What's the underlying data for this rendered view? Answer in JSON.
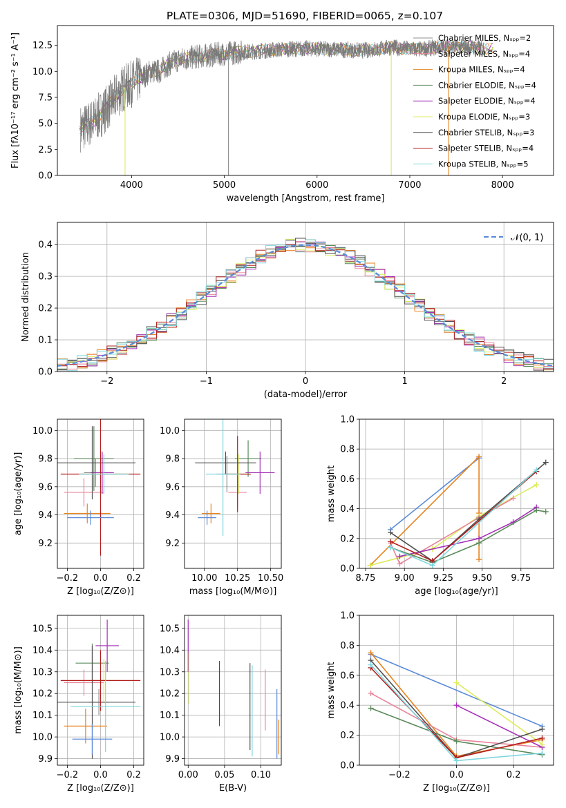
{
  "figure_title": "PLATE=0306, MJD=51690, FIBERID=0065, z=0.107",
  "model_colors": [
    "#8c8c8c",
    "#e8849a",
    "#e8821e",
    "#5a8a5a",
    "#a530b8",
    "#dcec5a",
    "#505050",
    "#b21e1e",
    "#7fd6de"
  ],
  "chart_data": [
    {
      "type": "line",
      "id": "spectrum",
      "xlabel": "wavelength [Angstrom, rest frame]",
      "ylabel": "Flux [fλ10⁻¹⁷ erg cm⁻² s⁻¹ A⁻¹]",
      "xlim": [
        3200,
        8550
      ],
      "ylim": [
        0,
        14.4
      ],
      "xticks": [
        "4000",
        "5000",
        "6000",
        "7000",
        "8000"
      ],
      "yticks": [
        "0.0",
        "2.5",
        "5.0",
        "7.5",
        "10.0",
        "12.5"
      ],
      "legend": [
        "Chabrier MILES, Nₛₚₚ=2",
        "Salpeter MILES, Nₛₚₚ=4",
        "Kroupa MILES, Nₛₚₚ=4",
        "Chabrier ELODIE, Nₛₚₚ=4",
        "Salpeter ELODIE, Nₛₚₚ=4",
        "Kroupa ELODIE, Nₛₚₚ=3",
        "Chabrier STELIB, Nₛₚₚ=3",
        "Salpeter STELIB, Nₛₚₚ=4",
        "Kroupa STELIB, Nₛₚₚ=5"
      ],
      "legend_position": "right",
      "continuum": {
        "x": [
          3420,
          3500,
          3600,
          3700,
          3800,
          3900,
          4000,
          4100,
          4200,
          4300,
          4400,
          4500,
          4700,
          4900,
          5100,
          5300,
          5600,
          5900,
          6200,
          6500,
          6800,
          7100,
          7400,
          7700,
          7900
        ],
        "y": [
          4.4,
          4.7,
          5.3,
          6.2,
          7.2,
          8.3,
          8.8,
          9.3,
          10.0,
          10.0,
          10.7,
          11.1,
          11.4,
          11.6,
          11.8,
          11.9,
          12.1,
          12.2,
          12.1,
          12.0,
          12.3,
          12.1,
          12.4,
          12.3,
          12.1
        ]
      },
      "noise_amplitude": 1.0,
      "drop_lines": [
        3930,
        5045,
        6800,
        7420
      ]
    },
    {
      "type": "bar",
      "id": "residuals",
      "xlabel": "(data-model)/error",
      "ylabel": "Normed distribution",
      "xlim": [
        -2.5,
        2.5
      ],
      "ylim": [
        0,
        0.47
      ],
      "grid": true,
      "xticks": [
        "−2",
        "−1",
        "0",
        "1",
        "2"
      ],
      "yticks": [
        "0.0",
        "0.1",
        "0.2",
        "0.3",
        "0.4"
      ],
      "bin_width": 0.1,
      "legend": [
        "𝒩(0, 1)"
      ],
      "legend_position": "upper right",
      "gaussian": {
        "mean": 0,
        "sigma": 1
      }
    },
    {
      "type": "scatter",
      "id": "age_vs_Z",
      "xlabel": "Z [log₁₀(Z/Z⊙)]",
      "ylabel": "age  [log₁₀(age/yr)]",
      "xlim": [
        -0.26,
        0.26
      ],
      "ylim": [
        9.02,
        10.08
      ],
      "grid": true,
      "xticks": [
        {
          "v": -0.2,
          "t": "−0.2"
        },
        {
          "v": 0,
          "t": "0.0"
        },
        {
          "v": 0.2,
          "t": "0.2"
        }
      ],
      "yticks": [
        {
          "v": 9.2,
          "t": "9.2"
        },
        {
          "v": 9.4,
          "t": "9.4"
        },
        {
          "v": 9.6,
          "t": "9.6"
        },
        {
          "v": 9.8,
          "t": "9.8"
        },
        {
          "v": 10.0,
          "t": "10.0"
        }
      ],
      "points": [
        {
          "x": -0.03,
          "y": 9.7,
          "xerr": 0.07,
          "yerr": 0.1,
          "c": 0
        },
        {
          "x": -0.1,
          "y": 9.56,
          "xerr": 0.12,
          "yerr": 0.1,
          "c": 1
        },
        {
          "x": -0.08,
          "y": 9.41,
          "xerr": 0.14,
          "yerr": 0.07,
          "c": 2
        },
        {
          "x": -0.04,
          "y": 9.8,
          "xerr": 0.12,
          "yerr": 0.23,
          "c": 3
        },
        {
          "x": 0.01,
          "y": 9.7,
          "xerr": 0.07,
          "yerr": 0.15,
          "c": 4
        },
        {
          "x": 0.02,
          "y": 9.69,
          "xerr": 0.14,
          "yerr": 0.14,
          "c": 5
        },
        {
          "x": -0.05,
          "y": 9.77,
          "xerr": 0.26,
          "yerr": 0.26,
          "c": 6
        },
        {
          "x": 0.0,
          "y": 9.69,
          "xerr": 0.24,
          "yerr": 0.58,
          "c": 7
        },
        {
          "x": 0.02,
          "y": 9.69,
          "xerr": 0.15,
          "yerr": 0.14,
          "c": 8
        },
        {
          "x": -0.06,
          "y": 9.38,
          "xerr": 0.14,
          "yerr": 0.05,
          "c": 9
        }
      ]
    },
    {
      "type": "scatter",
      "id": "age_vs_mass",
      "xlabel": "mass [log₁₀(M/M⊙)]",
      "ylabel": "",
      "xlim": [
        9.85,
        10.58
      ],
      "ylim": [
        9.02,
        10.08
      ],
      "grid": true,
      "xticks": [
        {
          "v": 10.0,
          "t": "10.00"
        },
        {
          "v": 10.25,
          "t": "10.25"
        },
        {
          "v": 10.5,
          "t": "10.50"
        }
      ],
      "yticks": [
        {
          "v": 9.2,
          "t": "9.2"
        },
        {
          "v": 9.4,
          "t": "9.4"
        },
        {
          "v": 9.6,
          "t": "9.6"
        },
        {
          "v": 9.8,
          "t": "9.8"
        },
        {
          "v": 10.0,
          "t": "10.0"
        }
      ],
      "points": [
        {
          "x": 10.17,
          "y": 9.69,
          "xerr": 0.08,
          "yerr": 0.13,
          "c": 0
        },
        {
          "x": 10.25,
          "y": 9.56,
          "xerr": 0.07,
          "yerr": 0.1,
          "c": 1
        },
        {
          "x": 10.05,
          "y": 9.41,
          "xerr": 0.07,
          "yerr": 0.07,
          "c": 2
        },
        {
          "x": 10.33,
          "y": 9.8,
          "xerr": 0.1,
          "yerr": 0.13,
          "c": 3
        },
        {
          "x": 10.42,
          "y": 9.7,
          "xerr": 0.11,
          "yerr": 0.15,
          "c": 4
        },
        {
          "x": 10.26,
          "y": 9.69,
          "xerr": 0.07,
          "yerr": 0.14,
          "c": 5
        },
        {
          "x": 10.16,
          "y": 9.77,
          "xerr": 0.23,
          "yerr": 0.08,
          "c": 6
        },
        {
          "x": 10.25,
          "y": 9.69,
          "xerr": 0.1,
          "yerr": 0.27,
          "c": 7
        },
        {
          "x": 10.14,
          "y": 9.69,
          "xerr": 0.13,
          "yerr": 0.44,
          "c": 8
        },
        {
          "x": 10.02,
          "y": 9.38,
          "xerr": 0.07,
          "yerr": 0.05,
          "c": 9
        }
      ]
    },
    {
      "type": "line",
      "id": "mass_weight_vs_age",
      "xlabel": "age  [log₁₀(age/yr)]",
      "ylabel": "mass weight",
      "xlim": [
        8.71,
        9.96
      ],
      "ylim": [
        0,
        1.0
      ],
      "grid": true,
      "xticks": [
        {
          "v": 8.75,
          "t": "8.75"
        },
        {
          "v": 9.0,
          "t": "9.00"
        },
        {
          "v": 9.25,
          "t": "9.25"
        },
        {
          "v": 9.5,
          "t": "9.50"
        },
        {
          "v": 9.75,
          "t": "9.75"
        }
      ],
      "yticks": [
        {
          "v": 0,
          "t": "0.0"
        },
        {
          "v": 0.2,
          "t": "0.2"
        },
        {
          "v": 0.4,
          "t": "0.4"
        },
        {
          "v": 0.6,
          "t": "0.6"
        },
        {
          "v": 0.8,
          "t": "0.8"
        },
        {
          "v": 1.0,
          "t": "1.0"
        }
      ],
      "series": [
        {
          "c": 9,
          "x": [
            8.91,
            9.48
          ],
          "y": [
            0.26,
            0.74
          ]
        },
        {
          "c": 2,
          "x": [
            8.78,
            9.48,
            9.48,
            9.48
          ],
          "y": [
            0.02,
            0.75,
            0.37,
            0.06
          ]
        },
        {
          "c": 5,
          "x": [
            8.78,
            9.18,
            9.48,
            9.85
          ],
          "y": [
            0.02,
            0.13,
            0.35,
            0.56
          ]
        },
        {
          "c": 1,
          "x": [
            8.91,
            8.97,
            9.48,
            9.7
          ],
          "y": [
            0.17,
            0.03,
            0.34,
            0.47
          ]
        },
        {
          "c": 4,
          "x": [
            8.97,
            9.48,
            9.7,
            9.85
          ],
          "y": [
            0.08,
            0.2,
            0.31,
            0.41
          ]
        },
        {
          "c": 3,
          "x": [
            8.91,
            9.18,
            9.48,
            9.85,
            9.91
          ],
          "y": [
            0.14,
            0.04,
            0.17,
            0.39,
            0.38
          ]
        },
        {
          "c": 6,
          "x": [
            8.91,
            9.18,
            9.48,
            9.91
          ],
          "y": [
            0.24,
            0.05,
            0.33,
            0.71
          ]
        },
        {
          "c": 7,
          "x": [
            8.91,
            9.18,
            9.85
          ],
          "y": [
            0.18,
            0.05,
            0.65
          ]
        },
        {
          "c": 8,
          "x": [
            8.91,
            9.18,
            9.85
          ],
          "y": [
            0.14,
            0.02,
            0.66
          ]
        }
      ]
    },
    {
      "type": "scatter",
      "id": "mass_vs_Z",
      "xlabel": "Z [log₁₀(Z/Z⊙)]",
      "ylabel": "mass [log₁₀(M/M⊙)]",
      "xlim": [
        -0.26,
        0.26
      ],
      "ylim": [
        9.87,
        10.56
      ],
      "grid": true,
      "xticks": [
        {
          "v": -0.2,
          "t": "−0.2"
        },
        {
          "v": 0,
          "t": "0.0"
        },
        {
          "v": 0.2,
          "t": "0.2"
        }
      ],
      "yticks": [
        {
          "v": 9.9,
          "t": "9.9"
        },
        {
          "v": 10.0,
          "t": "10.0"
        },
        {
          "v": 10.1,
          "t": "10.1"
        },
        {
          "v": 10.2,
          "t": "10.2"
        },
        {
          "v": 10.3,
          "t": "10.3"
        },
        {
          "v": 10.4,
          "t": "10.4"
        },
        {
          "v": 10.5,
          "t": "10.5"
        }
      ],
      "points": [
        {
          "x": -0.01,
          "y": 10.16,
          "xerr": 0.06,
          "yerr": 0.06,
          "c": 0
        },
        {
          "x": -0.1,
          "y": 10.25,
          "xerr": 0.12,
          "yerr": 0.06,
          "c": 1
        },
        {
          "x": -0.09,
          "y": 10.05,
          "xerr": 0.13,
          "yerr": 0.08,
          "c": 2
        },
        {
          "x": -0.05,
          "y": 10.34,
          "xerr": 0.1,
          "yerr": 0.09,
          "c": 3
        },
        {
          "x": 0.04,
          "y": 10.42,
          "xerr": 0.07,
          "yerr": 0.12,
          "c": 4
        },
        {
          "x": 0.02,
          "y": 10.26,
          "xerr": 0.1,
          "yerr": 0.1,
          "c": 5
        },
        {
          "x": -0.05,
          "y": 10.16,
          "xerr": 0.26,
          "yerr": 0.26,
          "c": 6
        },
        {
          "x": 0.0,
          "y": 10.26,
          "xerr": 0.24,
          "yerr": 0.14,
          "c": 7
        },
        {
          "x": 0.03,
          "y": 10.14,
          "xerr": 0.21,
          "yerr": 0.21,
          "c": 8
        },
        {
          "x": -0.05,
          "y": 9.99,
          "xerr": 0.12,
          "yerr": 0.07,
          "c": 9
        }
      ]
    },
    {
      "type": "scatter",
      "id": "mass_vs_EBV",
      "xlabel": "E(B-V)",
      "ylabel": "",
      "xlim": [
        -0.005,
        0.128
      ],
      "ylim": [
        9.87,
        10.56
      ],
      "grid": true,
      "xticks": [
        {
          "v": 0,
          "t": "0.00"
        },
        {
          "v": 0.05,
          "t": "0.05"
        },
        {
          "v": 0.1,
          "t": "0.10"
        }
      ],
      "yticks": [
        {
          "v": 9.9,
          "t": "9.9"
        },
        {
          "v": 10.0,
          "t": "10.0"
        },
        {
          "v": 10.1,
          "t": "10.1"
        },
        {
          "v": 10.2,
          "t": "10.2"
        },
        {
          "v": 10.3,
          "t": "10.3"
        },
        {
          "v": 10.4,
          "t": "10.4"
        },
        {
          "v": 10.5,
          "t": "10.5"
        }
      ],
      "points": [
        {
          "x": 0.0,
          "y": 10.42,
          "yerr": 0.12,
          "c": 4
        },
        {
          "x": 0.001,
          "y": 10.27,
          "yerr": 0.12,
          "c": 5
        },
        {
          "x": 0.043,
          "y": 10.2,
          "yerr": 0.15,
          "c": 7
        },
        {
          "x": 0.085,
          "y": 10.14,
          "yerr": 0.2,
          "c": 6
        },
        {
          "x": 0.088,
          "y": 10.12,
          "yerr": 0.21,
          "c": 8
        },
        {
          "x": 0.106,
          "y": 10.17,
          "yerr": 0.14,
          "c": 1
        },
        {
          "x": 0.122,
          "y": 10.06,
          "yerr": 0.16,
          "c": 9
        },
        {
          "x": 0.124,
          "y": 10.0,
          "yerr": 0.08,
          "c": 2
        }
      ]
    },
    {
      "type": "line",
      "id": "mass_weight_vs_Z",
      "xlabel": "Z [log₁₀(Z/Z⊙)]",
      "ylabel": "mass weight",
      "xlim": [
        -0.34,
        0.34
      ],
      "ylim": [
        0,
        1.0
      ],
      "grid": true,
      "xticks": [
        {
          "v": -0.2,
          "t": "−0.2"
        },
        {
          "v": 0,
          "t": "0.0"
        },
        {
          "v": 0.2,
          "t": "0.2"
        }
      ],
      "yticks": [
        {
          "v": 0,
          "t": "0.0"
        },
        {
          "v": 0.2,
          "t": "0.2"
        },
        {
          "v": 0.4,
          "t": "0.4"
        },
        {
          "v": 0.6,
          "t": "0.6"
        },
        {
          "v": 0.8,
          "t": "0.8"
        },
        {
          "v": 1.0,
          "t": "1.0"
        }
      ],
      "series": [
        {
          "c": 9,
          "x": [
            -0.3,
            0.3
          ],
          "y": [
            0.74,
            0.26
          ]
        },
        {
          "c": 2,
          "x": [
            -0.3,
            0,
            0.3
          ],
          "y": [
            0.75,
            0.06,
            0.17
          ]
        },
        {
          "c": 1,
          "x": [
            -0.3,
            0,
            0.3
          ],
          "y": [
            0.48,
            0.17,
            0.12
          ]
        },
        {
          "c": 3,
          "x": [
            -0.3,
            0,
            0.3
          ],
          "y": [
            0.38,
            0.16,
            0.07
          ]
        },
        {
          "c": 4,
          "x": [
            0,
            0.3
          ],
          "y": [
            0.4,
            0.12
          ]
        },
        {
          "c": 5,
          "x": [
            0,
            0.3
          ],
          "y": [
            0.55,
            0.14
          ]
        },
        {
          "c": 6,
          "x": [
            -0.3,
            0,
            0.3
          ],
          "y": [
            0.7,
            0.05,
            0.24
          ]
        },
        {
          "c": 7,
          "x": [
            -0.3,
            0,
            0.3
          ],
          "y": [
            0.65,
            0.05,
            0.18
          ]
        },
        {
          "c": 8,
          "x": [
            -0.3,
            0,
            0.3
          ],
          "y": [
            0.67,
            0.03,
            0.08
          ]
        }
      ]
    }
  ]
}
